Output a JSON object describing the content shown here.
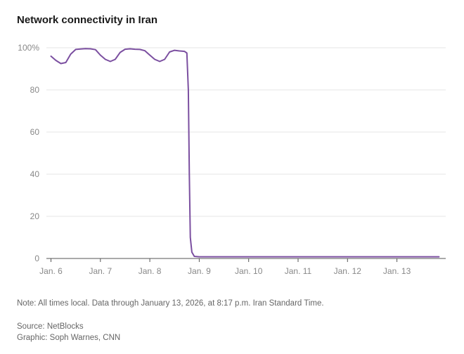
{
  "title": "Network connectivity in Iran",
  "note": "Note: All times local. Data through January 13, 2026, at 8:17 p.m. Iran Standard Time.",
  "source": "Source: NetBlocks",
  "graphic": "Graphic: Soph Warnes, CNN",
  "colors": {
    "line": "#7b4fa0",
    "grid": "#e6e6e6",
    "axis": "#555555",
    "text_muted": "#888888"
  },
  "chart_data": {
    "type": "line",
    "title": "Network connectivity in Iran",
    "xlabel": "",
    "ylabel": "",
    "xlim": [
      6,
      13.85
    ],
    "ylim": [
      0,
      100
    ],
    "grid": true,
    "y_ticks": [
      {
        "value": 0,
        "label": "0"
      },
      {
        "value": 20,
        "label": "20"
      },
      {
        "value": 40,
        "label": "40"
      },
      {
        "value": 60,
        "label": "60"
      },
      {
        "value": 80,
        "label": "80"
      },
      {
        "value": 100,
        "label": "100%"
      }
    ],
    "x_ticks": [
      {
        "value": 6,
        "label": "Jan. 6"
      },
      {
        "value": 7,
        "label": "Jan. 7"
      },
      {
        "value": 8,
        "label": "Jan. 8"
      },
      {
        "value": 9,
        "label": "Jan. 9"
      },
      {
        "value": 10,
        "label": "Jan. 10"
      },
      {
        "value": 11,
        "label": "Jan. 11"
      },
      {
        "value": 12,
        "label": "Jan. 12"
      },
      {
        "value": 13,
        "label": "Jan. 13"
      }
    ],
    "series": [
      {
        "name": "Network connectivity",
        "x": [
          6.0,
          6.1,
          6.2,
          6.3,
          6.4,
          6.5,
          6.6,
          6.7,
          6.8,
          6.9,
          7.0,
          7.1,
          7.2,
          7.3,
          7.4,
          7.5,
          7.6,
          7.7,
          7.8,
          7.9,
          8.0,
          8.1,
          8.2,
          8.3,
          8.4,
          8.5,
          8.6,
          8.7,
          8.75,
          8.78,
          8.8,
          8.82,
          8.85,
          8.9,
          9.0,
          9.5,
          10.0,
          10.5,
          11.0,
          11.5,
          12.0,
          12.5,
          13.0,
          13.5,
          13.85
        ],
        "values": [
          96,
          94,
          92.5,
          93,
          97,
          99.2,
          99.4,
          99.6,
          99.5,
          99.1,
          96.5,
          94.5,
          93.5,
          94.5,
          97.8,
          99.3,
          99.5,
          99.3,
          99.2,
          98.6,
          96.5,
          94.5,
          93.5,
          94.5,
          98,
          98.8,
          98.5,
          98.3,
          97.5,
          80,
          40,
          10,
          3,
          1,
          0.8,
          0.8,
          0.8,
          0.8,
          0.8,
          0.8,
          0.8,
          0.8,
          0.8,
          0.8,
          0.8
        ]
      }
    ]
  }
}
